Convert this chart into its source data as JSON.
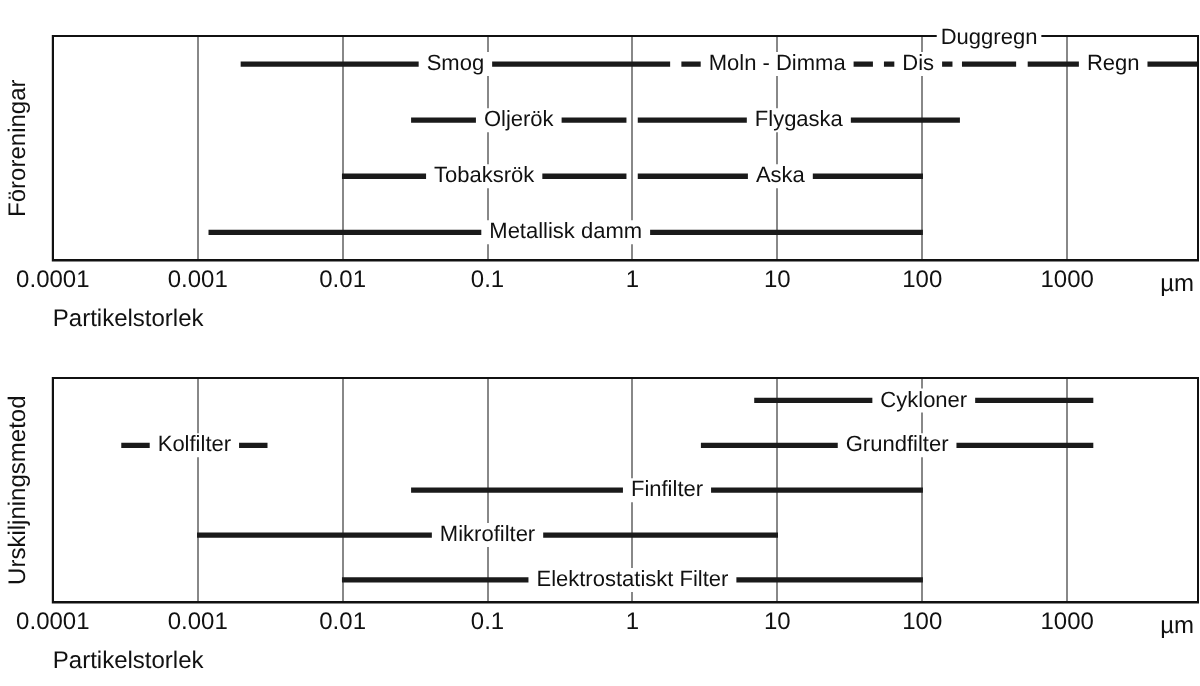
{
  "chart_data": [
    {
      "type": "bar",
      "orientation": "horizontal",
      "log": "x",
      "ylabel": "Föroreningar",
      "xlabel": "Partikelstorlek",
      "annotations": [
        "µm"
      ],
      "categories": [
        null,
        null,
        null,
        null
      ],
      "xlim": [
        0.0001,
        8000
      ],
      "xticks": [
        0.0001,
        0.001,
        0.01,
        0.1,
        1,
        10,
        100,
        1000
      ],
      "grid": "x",
      "legend": false,
      "tick_labels": "x",
      "series": [
        {
          "name": "Smog",
          "color": "#1a1a1a",
          "base": [
            0.002,
            null,
            null,
            null
          ],
          "values": [
            1.8,
            null,
            null,
            null
          ]
        },
        {
          "name": "Moln - Dimma",
          "color": "#1a1a1a",
          "base": [
            2.2,
            null,
            null,
            null
          ],
          "values": [
            43,
            null,
            null,
            null
          ]
        },
        {
          "name": "Dis",
          "color": "#1a1a1a",
          "base": [
            55,
            null,
            null,
            null
          ],
          "values": [
            105,
            null,
            null,
            null
          ]
        },
        {
          "name": "Duggregn",
          "color": "#1a1a1a",
          "base": [
            190,
            null,
            null,
            null
          ],
          "values": [
            250,
            null,
            null,
            null
          ]
        },
        {
          "name": "Regn",
          "color": "#1a1a1a",
          "base": [
            540,
            null,
            null,
            null
          ],
          "values": [
            7460,
            null,
            null,
            null
          ]
        },
        {
          "name": "Oljerök",
          "color": "#1a1a1a",
          "base": [
            null,
            0.03,
            null,
            null
          ],
          "values": [
            null,
            0.87,
            null,
            null
          ]
        },
        {
          "name": "Flygaska",
          "color": "#1a1a1a",
          "base": [
            null,
            1.1,
            null,
            null
          ],
          "values": [
            null,
            179,
            null,
            null
          ]
        },
        {
          "name": "Tobaksrök",
          "color": "#1a1a1a",
          "base": [
            null,
            null,
            0.01,
            null
          ],
          "values": [
            null,
            null,
            0.89,
            null
          ]
        },
        {
          "name": "Aska",
          "color": "#1a1a1a",
          "base": [
            null,
            null,
            1.1,
            null
          ],
          "values": [
            null,
            null,
            99,
            null
          ]
        },
        {
          "name": "Metallisk damm",
          "color": "#1a1a1a",
          "base": [
            null,
            null,
            null,
            0.0012
          ],
          "values": [
            null,
            null,
            null,
            100
          ]
        }
      ]
    },
    {
      "type": "bar",
      "orientation": "horizontal",
      "log": "x",
      "ylabel": "Urskiljningsmetod",
      "xlabel": "Partikelstorlek",
      "annotations": [
        "µm"
      ],
      "categories": [
        null,
        null,
        null,
        null,
        null
      ],
      "xlim": [
        0.0001,
        8000
      ],
      "xticks": [
        0.0001,
        0.001,
        0.01,
        0.1,
        1,
        10,
        100,
        1000
      ],
      "grid": "x",
      "legend": false,
      "tick_labels": "x",
      "series": [
        {
          "name": "Cykloner",
          "color": "#1a1a1a",
          "base": [
            7,
            null,
            null,
            null,
            null
          ],
          "values": [
            1493,
            null,
            null,
            null,
            null
          ]
        },
        {
          "name": "Grundfilter",
          "color": "#1a1a1a",
          "base": [
            null,
            3,
            null,
            null,
            null
          ],
          "values": [
            null,
            1497,
            null,
            null,
            null
          ]
        },
        {
          "name": "Kolfilter",
          "color": "#1a1a1a",
          "base": [
            null,
            0.0003,
            null,
            null,
            null
          ],
          "values": [
            null,
            0.0027,
            null,
            null,
            null
          ]
        },
        {
          "name": "Finfilter",
          "color": "#1a1a1a",
          "base": [
            null,
            null,
            0.03,
            null,
            null
          ],
          "values": [
            null,
            null,
            100,
            null,
            null
          ]
        },
        {
          "name": "Mikrofilter",
          "color": "#1a1a1a",
          "base": [
            null,
            null,
            null,
            0.001,
            null
          ],
          "values": [
            null,
            null,
            null,
            10,
            null
          ]
        },
        {
          "name": "Elektrostatiskt Filter",
          "color": "#1a1a1a",
          "base": [
            null,
            null,
            null,
            null,
            0.01
          ],
          "values": [
            null,
            null,
            null,
            null,
            100
          ]
        }
      ]
    }
  ]
}
